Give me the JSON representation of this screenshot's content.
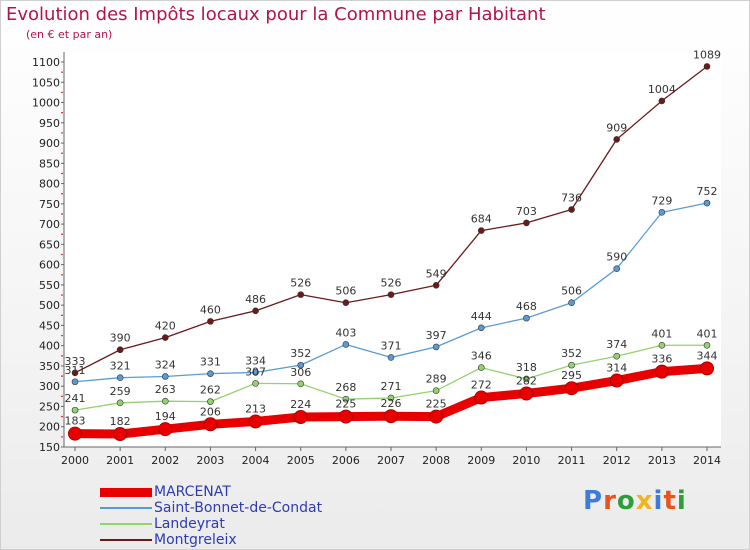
{
  "header": {
    "title": "Evolution des Impôts locaux pour la Commune par Habitant",
    "subtitle": "(en € et par an)"
  },
  "logo": {
    "text": "Proxiti",
    "colors": [
      "#3b7dd8",
      "#e8541c",
      "#2e9e3a",
      "#f2b41e"
    ]
  },
  "chart_data": {
    "type": "line",
    "x": [
      "2000",
      "2001",
      "2002",
      "2003",
      "2004",
      "2005",
      "2006",
      "2007",
      "2008",
      "2009",
      "2010",
      "2011",
      "2012",
      "2013",
      "2014"
    ],
    "ylim": [
      150,
      1100
    ],
    "yticks": [
      150,
      200,
      250,
      300,
      350,
      400,
      450,
      500,
      550,
      600,
      650,
      700,
      750,
      800,
      850,
      900,
      950,
      1000,
      1050,
      1100
    ],
    "grid": false,
    "legend_position": "bottom-left",
    "series": [
      {
        "name": "MARCENAT",
        "color": "#e80000",
        "values": [
          183,
          182,
          194,
          206,
          213,
          224,
          225,
          226,
          225,
          272,
          282,
          295,
          314,
          336,
          344
        ]
      },
      {
        "name": "Saint-Bonnet-de-Condat",
        "color": "#5b9bd5",
        "values": [
          311,
          321,
          324,
          331,
          334,
          352,
          403,
          371,
          397,
          444,
          468,
          506,
          590,
          729,
          752
        ]
      },
      {
        "name": "Landeyrat",
        "color": "#92d36e",
        "values": [
          241,
          259,
          263,
          262,
          307,
          306,
          268,
          271,
          289,
          346,
          318,
          352,
          374,
          401,
          401
        ]
      },
      {
        "name": "Montgreleix",
        "color": "#6b1a1a",
        "values": [
          333,
          390,
          420,
          460,
          486,
          526,
          506,
          526,
          549,
          684,
          703,
          736,
          909,
          1004,
          1089
        ]
      }
    ]
  }
}
